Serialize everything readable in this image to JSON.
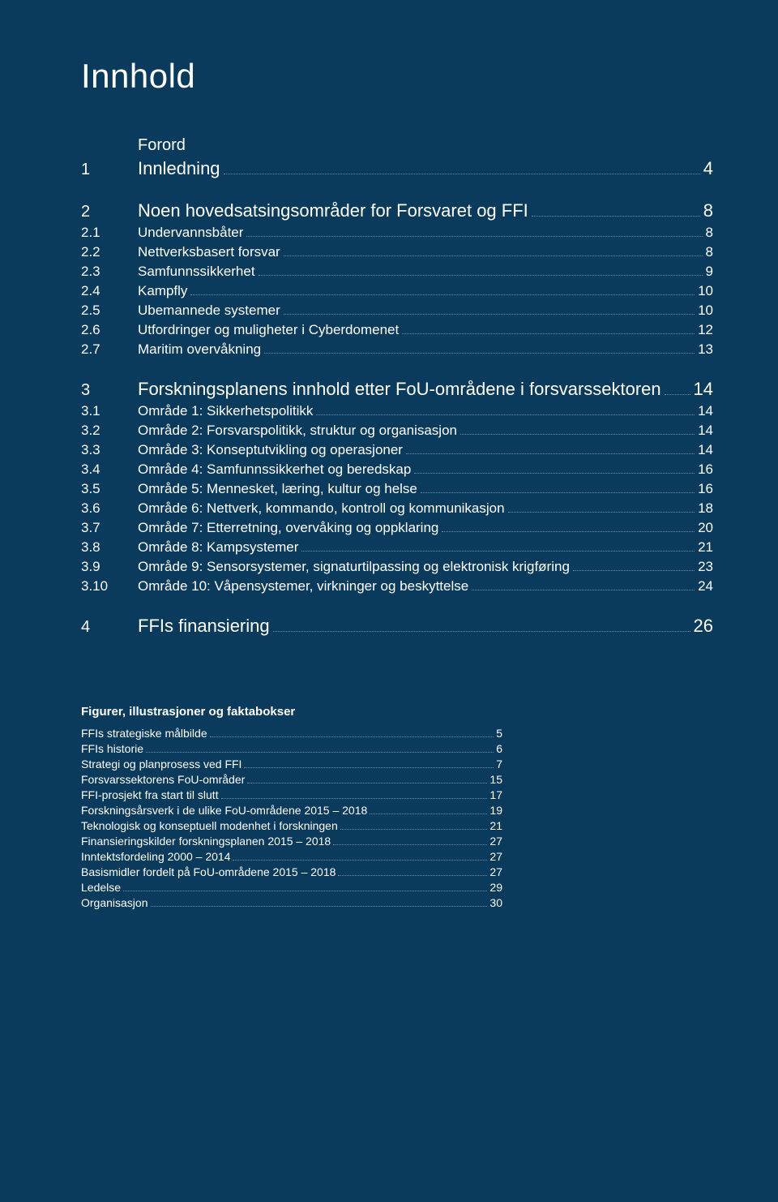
{
  "doc": {
    "title": "Innhold",
    "background_color": "#0a3a5c",
    "text_color": "#ffffff",
    "dot_color": "#6a8ba3"
  },
  "toc": [
    {
      "type": "plain",
      "num": "",
      "label": "Forord",
      "page": ""
    },
    {
      "type": "chapter",
      "num": "1",
      "label": "Innledning",
      "page": "4"
    },
    {
      "type": "gap"
    },
    {
      "type": "chapter",
      "num": "2",
      "label": "Noen hovedsatsingsområder for Forsvaret og FFI",
      "page": "8"
    },
    {
      "type": "sub",
      "num": "2.1",
      "label": "Undervannsbåter",
      "page": "8"
    },
    {
      "type": "sub",
      "num": "2.2",
      "label": "Nettverksbasert forsvar",
      "page": "8"
    },
    {
      "type": "sub",
      "num": "2.3",
      "label": "Samfunnssikkerhet",
      "page": "9"
    },
    {
      "type": "sub",
      "num": "2.4",
      "label": "Kampfly",
      "page": "10"
    },
    {
      "type": "sub",
      "num": "2.5",
      "label": "Ubemannede systemer",
      "page": "10"
    },
    {
      "type": "sub",
      "num": "2.6",
      "label": "Utfordringer og muligheter i Cyberdomenet",
      "page": "12"
    },
    {
      "type": "sub",
      "num": "2.7",
      "label": "Maritim overvåkning",
      "page": "13"
    },
    {
      "type": "gap"
    },
    {
      "type": "chapter",
      "num": "3",
      "label": "Forskningsplanens innhold etter FoU-områdene i forsvarssektoren",
      "page": "14"
    },
    {
      "type": "sub",
      "num": "3.1",
      "label": "Område  1: Sikkerhetspolitikk",
      "page": "14"
    },
    {
      "type": "sub",
      "num": "3.2",
      "label": "Område  2: Forsvarspolitikk, struktur og organisasjon",
      "page": "14"
    },
    {
      "type": "sub",
      "num": "3.3",
      "label": "Område  3: Konseptutvikling og operasjoner",
      "page": "14"
    },
    {
      "type": "sub",
      "num": "3.4",
      "label": "Område  4: Samfunnssikkerhet og beredskap",
      "page": "16"
    },
    {
      "type": "sub",
      "num": "3.5",
      "label": "Område  5: Mennesket, læring, kultur og helse",
      "page": "16"
    },
    {
      "type": "sub",
      "num": "3.6",
      "label": "Område  6: Nettverk, kommando, kontroll og kommunikasjon",
      "page": "18"
    },
    {
      "type": "sub",
      "num": "3.7",
      "label": "Område  7: Etterretning, overvåking og oppklaring",
      "page": "20"
    },
    {
      "type": "sub",
      "num": "3.8",
      "label": "Område  8: Kampsystemer",
      "page": "21"
    },
    {
      "type": "sub",
      "num": "3.9",
      "label": "Område  9: Sensorsystemer, signaturtilpassing og elektronisk krigføring",
      "page": "23"
    },
    {
      "type": "sub",
      "num": "3.10",
      "label": "Område 10: Våpensystemer, virkninger og beskyttelse",
      "page": "24"
    },
    {
      "type": "gap"
    },
    {
      "type": "chapter",
      "num": "4",
      "label": "FFIs finansiering",
      "page": "26"
    }
  ],
  "figures_header": "Figurer, illustrasjoner og faktabokser",
  "figures": [
    {
      "label": "FFIs strategiske målbilde",
      "page": "5"
    },
    {
      "label": "FFIs historie",
      "page": "6"
    },
    {
      "label": "Strategi og planprosess ved FFI",
      "page": "7"
    },
    {
      "label": "Forsvarssektorens FoU-områder",
      "page": "15"
    },
    {
      "label": "FFI-prosjekt fra start til slutt",
      "page": "17"
    },
    {
      "label": "Forskningsårsverk i de ulike FoU-områdene 2015 – 2018",
      "page": "19"
    },
    {
      "label": "Teknologisk og konseptuell modenhet i forskningen",
      "page": "21"
    },
    {
      "label": "Finansieringskilder forskningsplanen 2015 – 2018",
      "page": "27"
    },
    {
      "label": "Inntektsfordeling 2000 – 2014",
      "page": "27"
    },
    {
      "label": "Basismidler fordelt på FoU-områdene 2015 – 2018",
      "page": "27"
    },
    {
      "label": "Ledelse",
      "page": "29"
    },
    {
      "label": "Organisasjon",
      "page": "30"
    }
  ]
}
